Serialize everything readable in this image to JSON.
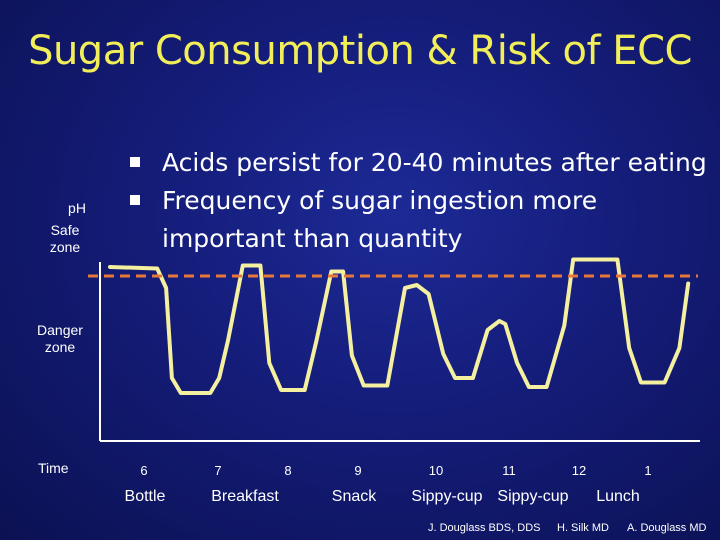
{
  "title": "Sugar Consumption & Risk of ECC",
  "bullets": [
    "Acids persist for 20-40 minutes after eating",
    "Frequency of sugar ingestion  more important than quantity"
  ],
  "credits": [
    "J. Douglass BDS, DDS",
    "H. Silk MD",
    "A. Douglass MD"
  ],
  "colors": {
    "title": "#f2ee5a",
    "curve": "#f4f0a0",
    "threshold": "#e8773a",
    "axis": "#ffffff"
  },
  "chart_data": {
    "type": "line",
    "ylabel": "pH",
    "zones": {
      "safe": "Safe zone",
      "danger": "Danger zone"
    },
    "xlabel": "Time",
    "tick_labels": [
      "6",
      "7",
      "8",
      "9",
      "10",
      "11",
      "12",
      "1"
    ],
    "events": [
      {
        "label": "Bottle",
        "at": "6"
      },
      {
        "label": "Breakfast",
        "at": "7"
      },
      {
        "label": "Snack",
        "at": "9"
      },
      {
        "label": "Sippy-cup",
        "at": "10"
      },
      {
        "label": "Sippy-cup",
        "at": "11"
      },
      {
        "label": "Lunch",
        "at": "1"
      }
    ],
    "threshold_line": "dashed",
    "xlim": [
      0,
      100
    ],
    "ylim": [
      0,
      100
    ],
    "series": [
      {
        "values": [
          [
            0,
            94
          ],
          [
            8,
            93
          ],
          [
            9.5,
            80
          ],
          [
            10.5,
            20
          ],
          [
            12,
            10
          ],
          [
            17,
            10
          ],
          [
            18.5,
            20
          ],
          [
            20,
            45
          ],
          [
            22.5,
            95
          ],
          [
            25.5,
            95
          ],
          [
            27,
            30
          ],
          [
            29,
            12
          ],
          [
            33,
            12
          ],
          [
            35,
            45
          ],
          [
            37.5,
            91
          ],
          [
            39.5,
            91
          ],
          [
            41,
            35
          ],
          [
            43,
            15
          ],
          [
            47,
            15
          ],
          [
            50,
            80
          ],
          [
            52,
            82
          ],
          [
            54,
            76
          ],
          [
            56.5,
            36
          ],
          [
            58.5,
            20
          ],
          [
            61.5,
            20
          ],
          [
            64,
            52
          ],
          [
            66,
            58
          ],
          [
            67,
            56
          ],
          [
            69,
            30
          ],
          [
            71,
            14
          ],
          [
            74,
            14
          ],
          [
            77,
            55
          ],
          [
            78.5,
            99
          ],
          [
            86,
            99
          ],
          [
            88,
            40
          ],
          [
            90,
            17
          ],
          [
            94,
            17
          ],
          [
            96.5,
            40
          ],
          [
            98,
            83
          ]
        ]
      }
    ]
  }
}
